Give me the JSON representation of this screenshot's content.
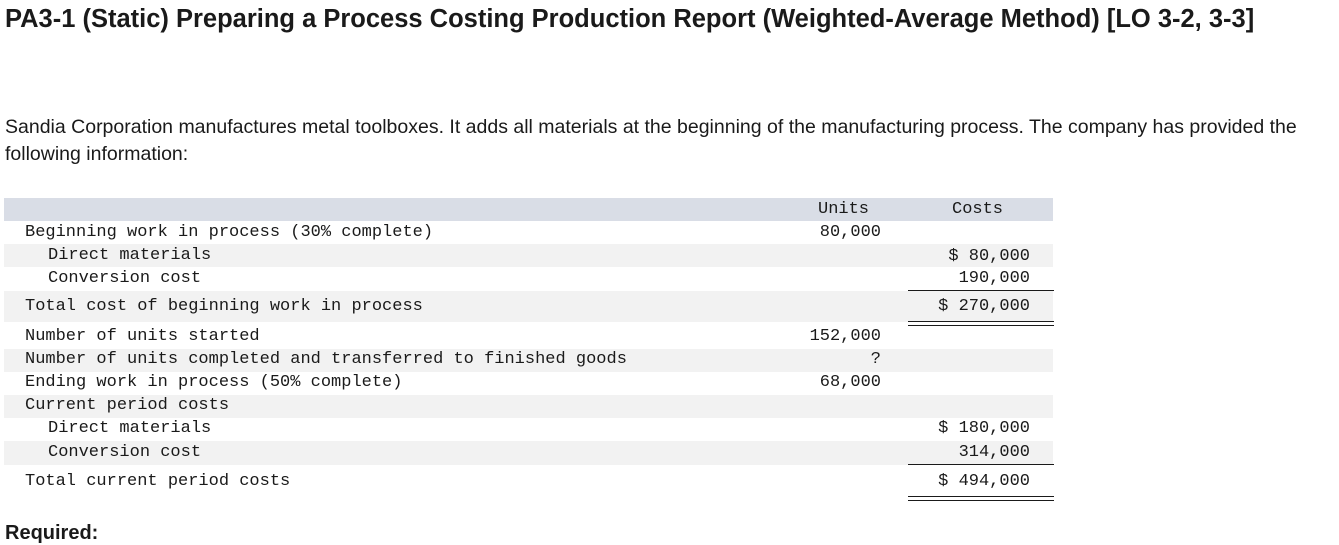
{
  "title": "PA3-1 (Static) Preparing a Process Costing Production Report (Weighted-Average Method) [LO 3-2, 3-3]",
  "intro": "Sandia Corporation manufactures metal toolboxes. It adds all materials at the beginning of the manufacturing process. The company has provided the following information:",
  "table": {
    "headers": {
      "units": "Units",
      "costs": "Costs"
    },
    "rows": [
      {
        "label": "Beginning work in process (30% complete)",
        "units": "80,000",
        "costs": ""
      },
      {
        "label": "Direct materials",
        "units": "",
        "costs": "$ 80,000"
      },
      {
        "label": "Conversion cost",
        "units": "",
        "costs": "190,000"
      },
      {
        "label": "Total cost of beginning work in process",
        "units": "",
        "costs": "$ 270,000"
      },
      {
        "label": "Number of units started",
        "units": "152,000",
        "costs": ""
      },
      {
        "label": "Number of units completed and transferred to finished goods",
        "units": "?",
        "costs": ""
      },
      {
        "label": "Ending work in process (50% complete)",
        "units": "68,000",
        "costs": ""
      },
      {
        "label": "Current period costs",
        "units": "",
        "costs": ""
      },
      {
        "label": "Direct materials",
        "units": "",
        "costs": "$ 180,000"
      },
      {
        "label": "Conversion cost",
        "units": "",
        "costs": "314,000"
      },
      {
        "label": "Total current period costs",
        "units": "",
        "costs": "$ 494,000"
      }
    ]
  },
  "requirement_label": "Required:"
}
